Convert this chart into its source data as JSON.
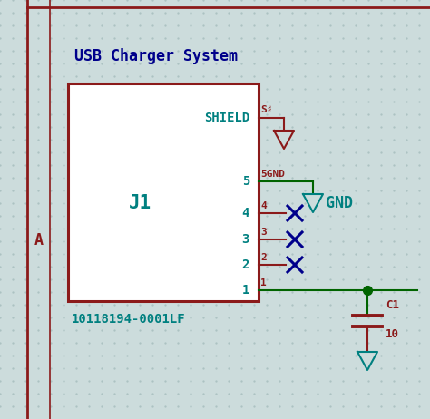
{
  "bg_color": "#ccdcdc",
  "grid_color": "#aac0c0",
  "border_color": "#8b1a1a",
  "title": "USB Charger System",
  "title_color": "#00008b",
  "component_ref": "J1",
  "component_ref_color": "#008080",
  "footprint": "10118194-0001LF",
  "footprint_color": "#008080",
  "box_color": "#8b1a1a",
  "pin_label_color": "#008080",
  "net_label_color": "#8b1a1a",
  "gnd_color": "#008080",
  "wire_color_dark": "#8b1a1a",
  "wire_color_green": "#006400",
  "x_color": "#00008b",
  "label_a": "A",
  "label_a_color": "#8b1a1a",
  "shield_label": "SHIELD",
  "shield_net": "S♯",
  "gnd_net_5": "5GND",
  "gnd_label": "GND",
  "capacitor_label": "C1",
  "cap_value": "10",
  "dot_color": "#006400",
  "fig_w": 4.74,
  "fig_h": 4.62,
  "dpi": 100
}
